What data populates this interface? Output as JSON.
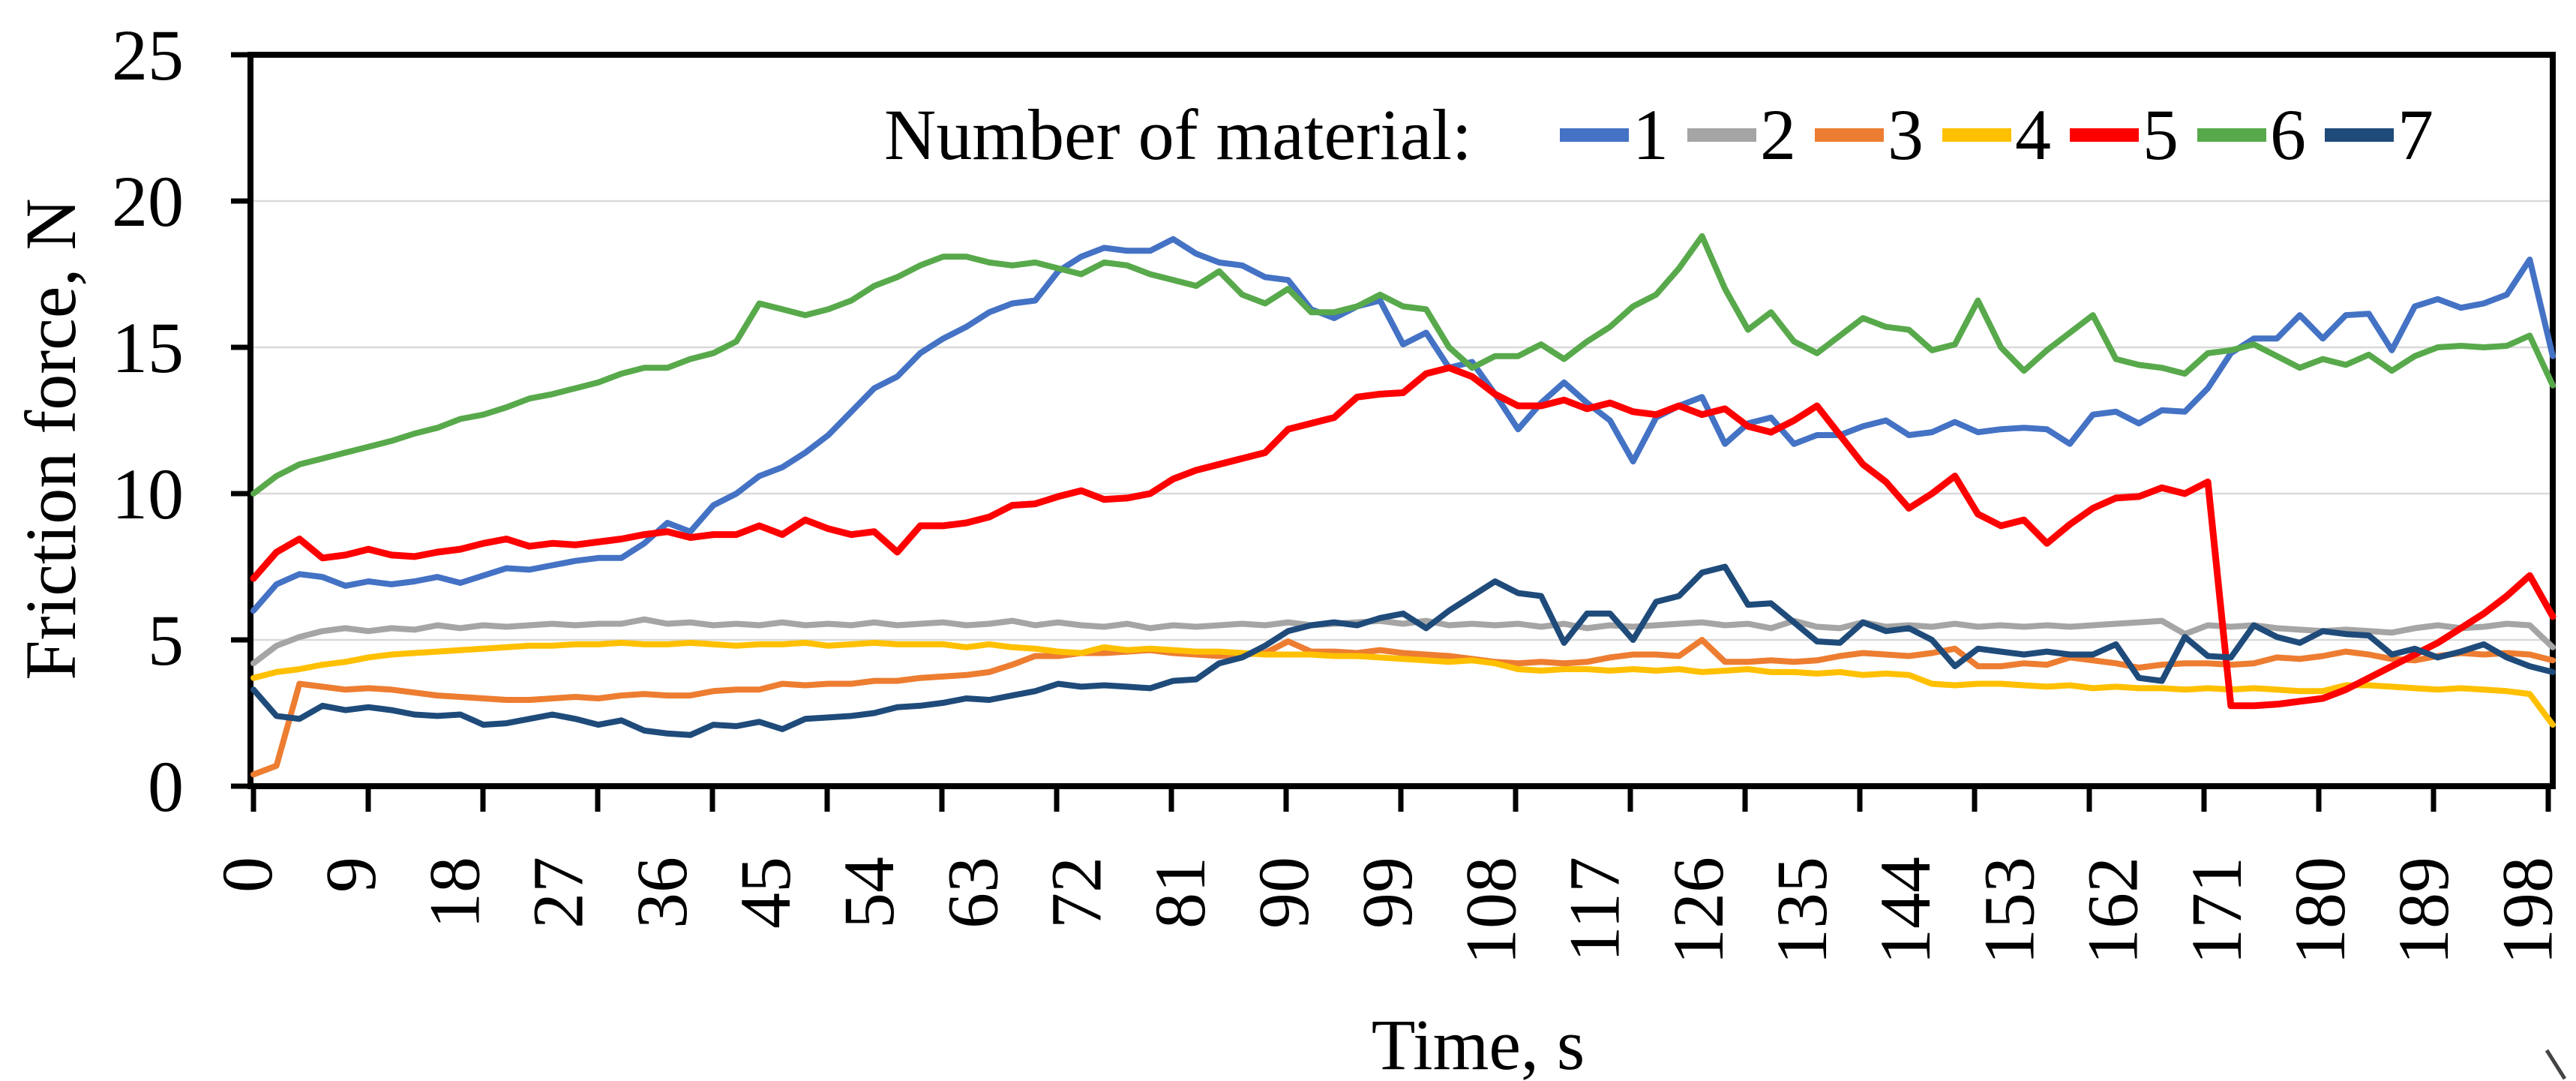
{
  "figure": {
    "background": "#ffffff"
  },
  "chart_data": {
    "type": "line",
    "title": "",
    "legend_title": "Number of material:",
    "xlabel": "Time, s",
    "ylabel": "Friction force, N",
    "xlim": [
      0,
      200
    ],
    "ylim": [
      0,
      25
    ],
    "y_ticks": [
      0,
      5,
      10,
      15,
      20,
      25
    ],
    "x_tick_labels": [
      0,
      9,
      18,
      27,
      36,
      45,
      54,
      63,
      72,
      81,
      90,
      99,
      108,
      117,
      126,
      135,
      144,
      153,
      162,
      171,
      180,
      189,
      198
    ],
    "grid": "horizontal",
    "gridline_color": "#d9d9d9",
    "axis_color": "#000000",
    "legend_position": "top-inside",
    "x_start": 0,
    "x_step": 2,
    "series": [
      {
        "name": "1",
        "color": "#4472C4",
        "values": [
          6.0,
          6.9,
          7.25,
          7.15,
          6.85,
          7.0,
          6.9,
          7.0,
          7.15,
          6.95,
          7.2,
          7.45,
          7.4,
          7.55,
          7.7,
          7.8,
          7.8,
          8.3,
          9.0,
          8.7,
          9.6,
          10.0,
          10.6,
          10.9,
          11.4,
          12.0,
          12.8,
          13.6,
          14.0,
          14.8,
          15.3,
          15.7,
          16.2,
          16.5,
          16.6,
          17.6,
          18.1,
          18.4,
          18.3,
          18.3,
          18.7,
          18.2,
          17.9,
          17.8,
          17.4,
          17.3,
          16.3,
          16.0,
          16.4,
          16.6,
          15.1,
          15.5,
          14.3,
          14.5,
          13.4,
          12.2,
          13.1,
          13.8,
          13.1,
          12.5,
          11.1,
          12.6,
          13.0,
          13.3,
          11.7,
          12.4,
          12.6,
          11.7,
          12.0,
          12.0,
          12.3,
          12.5,
          12.0,
          12.1,
          12.45,
          12.1,
          12.2,
          12.25,
          12.2,
          11.7,
          12.7,
          12.8,
          12.4,
          12.85,
          12.8,
          13.6,
          14.8,
          15.3,
          15.3,
          16.1,
          15.3,
          16.1,
          16.15,
          14.9,
          16.4,
          16.65,
          16.35,
          16.5,
          16.8,
          18.0,
          14.7
        ]
      },
      {
        "name": "2",
        "color": "#A5A5A5",
        "values": [
          4.2,
          4.8,
          5.1,
          5.3,
          5.4,
          5.3,
          5.4,
          5.35,
          5.5,
          5.4,
          5.5,
          5.45,
          5.5,
          5.55,
          5.5,
          5.55,
          5.55,
          5.7,
          5.55,
          5.6,
          5.5,
          5.55,
          5.5,
          5.6,
          5.5,
          5.55,
          5.5,
          5.6,
          5.5,
          5.55,
          5.6,
          5.5,
          5.55,
          5.65,
          5.5,
          5.6,
          5.5,
          5.45,
          5.55,
          5.4,
          5.5,
          5.45,
          5.5,
          5.55,
          5.5,
          5.6,
          5.5,
          5.55,
          5.6,
          5.65,
          5.55,
          5.65,
          5.5,
          5.55,
          5.5,
          5.55,
          5.45,
          5.55,
          5.4,
          5.5,
          5.45,
          5.5,
          5.55,
          5.6,
          5.5,
          5.55,
          5.4,
          5.65,
          5.45,
          5.4,
          5.6,
          5.45,
          5.5,
          5.45,
          5.55,
          5.45,
          5.5,
          5.45,
          5.5,
          5.45,
          5.5,
          5.55,
          5.6,
          5.65,
          5.2,
          5.5,
          5.45,
          5.5,
          5.4,
          5.35,
          5.3,
          5.35,
          5.3,
          5.25,
          5.4,
          5.5,
          5.4,
          5.45,
          5.55,
          5.5,
          4.75
        ]
      },
      {
        "name": "3",
        "color": "#ED7D31",
        "values": [
          0.4,
          0.7,
          3.5,
          3.4,
          3.3,
          3.35,
          3.3,
          3.2,
          3.1,
          3.05,
          3.0,
          2.95,
          2.95,
          3.0,
          3.05,
          3.0,
          3.1,
          3.15,
          3.1,
          3.1,
          3.25,
          3.3,
          3.3,
          3.5,
          3.45,
          3.5,
          3.5,
          3.6,
          3.6,
          3.7,
          3.75,
          3.8,
          3.9,
          4.15,
          4.45,
          4.45,
          4.55,
          4.55,
          4.6,
          4.65,
          4.55,
          4.5,
          4.45,
          4.5,
          4.55,
          4.95,
          4.6,
          4.6,
          4.55,
          4.65,
          4.55,
          4.5,
          4.45,
          4.35,
          4.25,
          4.2,
          4.25,
          4.2,
          4.25,
          4.4,
          4.5,
          4.5,
          4.45,
          5.0,
          4.25,
          4.25,
          4.3,
          4.25,
          4.3,
          4.45,
          4.55,
          4.5,
          4.45,
          4.55,
          4.7,
          4.1,
          4.1,
          4.2,
          4.15,
          4.4,
          4.3,
          4.2,
          4.05,
          4.15,
          4.2,
          4.2,
          4.15,
          4.2,
          4.4,
          4.35,
          4.45,
          4.6,
          4.5,
          4.35,
          4.3,
          4.45,
          4.55,
          4.5,
          4.55,
          4.5,
          4.3
        ]
      },
      {
        "name": "4",
        "color": "#FFC000",
        "values": [
          3.7,
          3.9,
          4.0,
          4.15,
          4.25,
          4.4,
          4.5,
          4.55,
          4.6,
          4.65,
          4.7,
          4.75,
          4.8,
          4.8,
          4.85,
          4.85,
          4.9,
          4.85,
          4.85,
          4.9,
          4.85,
          4.8,
          4.85,
          4.85,
          4.9,
          4.8,
          4.85,
          4.9,
          4.85,
          4.85,
          4.85,
          4.75,
          4.85,
          4.75,
          4.7,
          4.6,
          4.55,
          4.75,
          4.65,
          4.7,
          4.65,
          4.6,
          4.6,
          4.55,
          4.5,
          4.5,
          4.5,
          4.45,
          4.45,
          4.4,
          4.35,
          4.3,
          4.25,
          4.3,
          4.2,
          4.0,
          3.95,
          4.0,
          4.0,
          3.95,
          4.0,
          3.95,
          4.0,
          3.9,
          3.95,
          4.0,
          3.9,
          3.9,
          3.85,
          3.9,
          3.8,
          3.85,
          3.8,
          3.5,
          3.45,
          3.5,
          3.5,
          3.45,
          3.4,
          3.45,
          3.35,
          3.4,
          3.35,
          3.35,
          3.3,
          3.35,
          3.3,
          3.35,
          3.3,
          3.25,
          3.25,
          3.45,
          3.45,
          3.4,
          3.35,
          3.3,
          3.35,
          3.3,
          3.25,
          3.15,
          2.1
        ]
      },
      {
        "name": "5",
        "color": "#FF0000",
        "values": [
          7.1,
          8.0,
          8.45,
          7.8,
          7.9,
          8.1,
          7.9,
          7.85,
          8.0,
          8.1,
          8.3,
          8.45,
          8.2,
          8.3,
          8.25,
          8.35,
          8.45,
          8.6,
          8.7,
          8.5,
          8.6,
          8.6,
          8.9,
          8.6,
          9.1,
          8.8,
          8.6,
          8.7,
          8.0,
          8.9,
          8.9,
          9.0,
          9.2,
          9.6,
          9.65,
          9.9,
          10.1,
          9.8,
          9.85,
          10.0,
          10.5,
          10.8,
          11.0,
          11.2,
          11.4,
          12.2,
          12.4,
          12.6,
          13.3,
          13.4,
          13.45,
          14.1,
          14.3,
          14.0,
          13.4,
          13.0,
          13.0,
          13.2,
          12.9,
          13.1,
          12.8,
          12.7,
          13.0,
          12.7,
          12.9,
          12.3,
          12.1,
          12.5,
          13.0,
          12.0,
          11.0,
          10.4,
          9.5,
          10.0,
          10.6,
          9.3,
          8.9,
          9.1,
          8.3,
          8.95,
          9.5,
          9.85,
          9.9,
          10.2,
          10.0,
          10.4,
          2.75,
          2.75,
          2.8,
          2.9,
          3.0,
          3.3,
          3.7,
          4.1,
          4.5,
          4.9,
          5.4,
          5.9,
          6.5,
          7.2,
          5.8
        ]
      },
      {
        "name": "6",
        "color": "#58A94B",
        "values": [
          10.0,
          10.6,
          11.0,
          11.2,
          11.4,
          11.6,
          11.8,
          12.05,
          12.25,
          12.55,
          12.7,
          12.95,
          13.25,
          13.4,
          13.6,
          13.8,
          14.1,
          14.3,
          14.3,
          14.6,
          14.8,
          15.2,
          16.5,
          16.3,
          16.1,
          16.3,
          16.6,
          17.1,
          17.4,
          17.8,
          18.1,
          18.1,
          17.9,
          17.8,
          17.9,
          17.7,
          17.5,
          17.9,
          17.8,
          17.5,
          17.3,
          17.1,
          17.6,
          16.8,
          16.5,
          17.0,
          16.2,
          16.2,
          16.4,
          16.8,
          16.4,
          16.3,
          15.0,
          14.3,
          14.7,
          14.7,
          15.1,
          14.6,
          15.2,
          15.7,
          16.4,
          16.8,
          17.7,
          18.8,
          17.0,
          15.6,
          16.2,
          15.2,
          14.8,
          15.4,
          16.0,
          15.7,
          15.6,
          14.9,
          15.1,
          16.6,
          15.0,
          14.2,
          14.9,
          15.5,
          16.1,
          14.6,
          14.4,
          14.3,
          14.1,
          14.8,
          14.9,
          15.1,
          14.7,
          14.3,
          14.6,
          14.4,
          14.75,
          14.2,
          14.7,
          15.0,
          15.05,
          15.0,
          15.05,
          15.4,
          13.7
        ]
      },
      {
        "name": "7",
        "color": "#1F4B7A",
        "values": [
          3.3,
          2.4,
          2.3,
          2.75,
          2.6,
          2.7,
          2.6,
          2.45,
          2.4,
          2.45,
          2.1,
          2.15,
          2.3,
          2.45,
          2.3,
          2.1,
          2.25,
          1.9,
          1.8,
          1.75,
          2.1,
          2.05,
          2.2,
          1.95,
          2.3,
          2.35,
          2.4,
          2.5,
          2.7,
          2.75,
          2.85,
          3.0,
          2.95,
          3.1,
          3.25,
          3.5,
          3.4,
          3.45,
          3.4,
          3.35,
          3.6,
          3.65,
          4.2,
          4.4,
          4.8,
          5.3,
          5.5,
          5.6,
          5.5,
          5.75,
          5.9,
          5.4,
          6.0,
          6.5,
          7.0,
          6.6,
          6.5,
          4.9,
          5.9,
          5.9,
          5.0,
          6.3,
          6.5,
          7.3,
          7.5,
          6.2,
          6.25,
          5.6,
          4.95,
          4.9,
          5.6,
          5.3,
          5.4,
          5.0,
          4.1,
          4.7,
          4.6,
          4.5,
          4.6,
          4.5,
          4.5,
          4.85,
          3.7,
          3.6,
          5.1,
          4.45,
          4.4,
          5.5,
          5.1,
          4.9,
          5.3,
          5.2,
          5.15,
          4.5,
          4.7,
          4.4,
          4.6,
          4.85,
          4.4,
          4.1,
          3.9
        ]
      }
    ]
  },
  "corner_mark": "\\"
}
